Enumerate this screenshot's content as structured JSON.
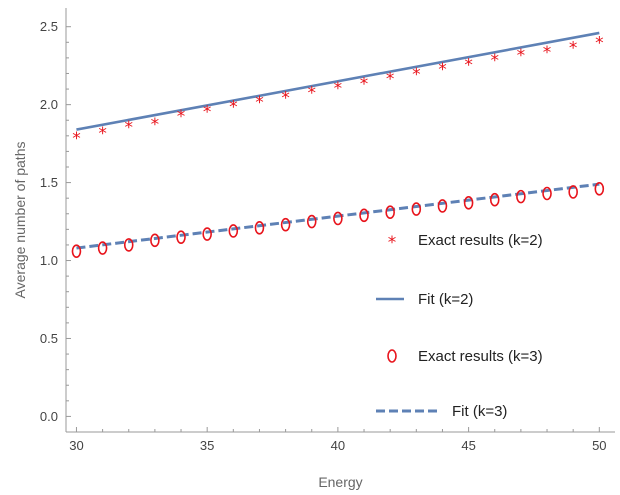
{
  "chart_data": {
    "type": "scatter",
    "title": "",
    "xlabel": "Energy",
    "ylabel": "Average number of paths",
    "xlim": [
      29.6,
      50.6
    ],
    "ylim": [
      -0.1,
      2.62
    ],
    "xticks": [
      30,
      35,
      40,
      45,
      50
    ],
    "xtick_labels": [
      "30",
      "35",
      "40",
      "45",
      "50"
    ],
    "yticks": [
      0.0,
      0.5,
      1.0,
      1.5,
      2.0,
      2.5
    ],
    "ytick_labels": [
      "0.0",
      "0.5",
      "1.0",
      "1.5",
      "2.0",
      "2.5"
    ],
    "grid": false,
    "legend_position": "lower-right",
    "colors": {
      "exact": "#e8141c",
      "fit": "#5e81b5",
      "axis": "#999999"
    },
    "series": [
      {
        "name": "Exact results (k=2)",
        "kind": "points",
        "marker": "*",
        "x": [
          30,
          31,
          32,
          33,
          34,
          35,
          36,
          37,
          38,
          39,
          40,
          41,
          42,
          43,
          44,
          45,
          46,
          47,
          48,
          49,
          50
        ],
        "y": [
          1.8,
          1.83,
          1.87,
          1.89,
          1.94,
          1.97,
          2.0,
          2.03,
          2.06,
          2.09,
          2.12,
          2.15,
          2.18,
          2.21,
          2.24,
          2.27,
          2.3,
          2.33,
          2.35,
          2.38,
          2.41
        ]
      },
      {
        "name": "Fit (k=2)",
        "kind": "line",
        "dash": "solid",
        "x": [
          30,
          50
        ],
        "y": [
          1.84,
          2.46
        ]
      },
      {
        "name": "Exact results (k=3)",
        "kind": "points",
        "marker": "o",
        "x": [
          30,
          31,
          32,
          33,
          34,
          35,
          36,
          37,
          38,
          39,
          40,
          41,
          42,
          43,
          44,
          45,
          46,
          47,
          48,
          49,
          50
        ],
        "y": [
          1.06,
          1.08,
          1.1,
          1.13,
          1.15,
          1.17,
          1.19,
          1.21,
          1.23,
          1.25,
          1.27,
          1.29,
          1.31,
          1.33,
          1.35,
          1.37,
          1.39,
          1.41,
          1.43,
          1.44,
          1.46
        ]
      },
      {
        "name": "Fit (k=3)",
        "kind": "line",
        "dash": "dashed",
        "x": [
          30,
          50
        ],
        "y": [
          1.08,
          1.49
        ]
      }
    ]
  }
}
